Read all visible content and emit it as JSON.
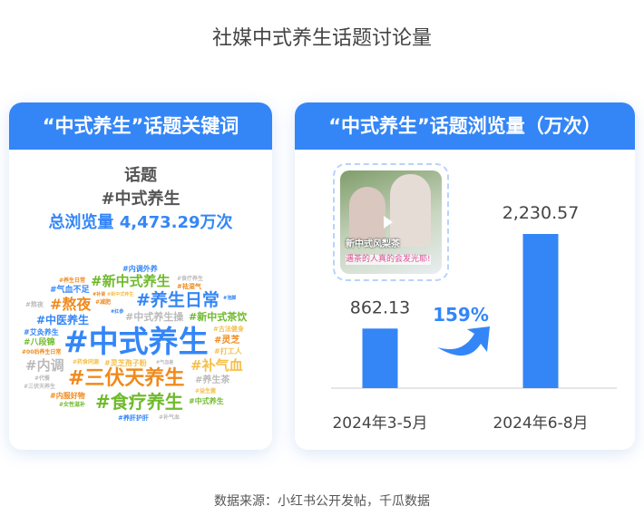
{
  "title": "社媒中式养生话题讨论量",
  "left_card": {
    "header": "“中式养生”话题关键词",
    "topic_label": "话题",
    "topic_name": "#中式养生",
    "total_label": "总浏览量",
    "total_value": "4,473.29万次",
    "word_cloud": [
      {
        "t": "#内调外养",
        "c": "#3486f7",
        "s": 8
      },
      {
        "t": "#新中式养生",
        "c": "#6fba2c",
        "s": 15
      },
      {
        "t": "#养生日常",
        "c": "#f08a1c",
        "s": 6
      },
      {
        "t": "#食疗养生",
        "c": "#bbbbbb",
        "s": 6
      },
      {
        "t": "#祛湿气",
        "c": "#f08a1c",
        "s": 7
      },
      {
        "t": "#气血不足",
        "c": "#3486f7",
        "s": 9
      },
      {
        "t": "#补肾",
        "c": "#f08a1c",
        "s": 5
      },
      {
        "t": "#新中式养生",
        "c": "#f5c04a",
        "s": 5
      },
      {
        "t": "#养生日常",
        "c": "#3486f7",
        "s": 19
      },
      {
        "t": "#熬夜",
        "c": "#f08a1c",
        "s": 16
      },
      {
        "t": "#减肥",
        "c": "#f08a1c",
        "s": 6
      },
      {
        "t": "#熬夜",
        "c": "#bbbbbb",
        "s": 7
      },
      {
        "t": "#泡脚",
        "c": "#3486f7",
        "s": 5
      },
      {
        "t": "#红参",
        "c": "#3486f7",
        "s": 5
      },
      {
        "t": "#中式养生操",
        "c": "#bbbbbb",
        "s": 11
      },
      {
        "t": "#新中式茶饮",
        "c": "#6fba2c",
        "s": 11
      },
      {
        "t": "#中医养生",
        "c": "#3486f7",
        "s": 12
      },
      {
        "t": "#中式养生",
        "c": "#3486f7",
        "s": 33
      },
      {
        "t": "#古法健身",
        "c": "#f5c04a",
        "s": 7
      },
      {
        "t": "#艾灸养生",
        "c": "#3486f7",
        "s": 8
      },
      {
        "t": "#灵芝",
        "c": "#f08a1c",
        "s": 10
      },
      {
        "t": "#八段锦",
        "c": "#6fba2c",
        "s": 9
      },
      {
        "t": "#打工人",
        "c": "#f5c04a",
        "s": 8
      },
      {
        "t": "#00后养生日常",
        "c": "#f08a1c",
        "s": 6
      },
      {
        "t": "#内调",
        "c": "#bbbbbb",
        "s": 15
      },
      {
        "t": "#药食同源",
        "c": "#f5c04a",
        "s": 6
      },
      {
        "t": "#灵芝孢子粉",
        "c": "#f5c04a",
        "s": 8
      },
      {
        "t": "#气血差",
        "c": "#bbbbbb",
        "s": 5
      },
      {
        "t": "#补气血",
        "c": "#f5c04a",
        "s": 15
      },
      {
        "t": "#代餐",
        "c": "#bbbbbb",
        "s": 6
      },
      {
        "t": "#三伏天养生",
        "c": "#f08a1c",
        "s": 22
      },
      {
        "t": "#养生茶",
        "c": "#bbbbbb",
        "s": 10
      },
      {
        "t": "#三伏天养生",
        "c": "#bbbbbb",
        "s": 6
      },
      {
        "t": "#内服好物",
        "c": "#f08a1c",
        "s": 8
      },
      {
        "t": "#益生菌",
        "c": "#f5c04a",
        "s": 6
      },
      {
        "t": "#食疗养生",
        "c": "#6fba2c",
        "s": 20
      },
      {
        "t": "#女性滋补",
        "c": "#6fba2c",
        "s": 6
      },
      {
        "t": "#中式养生",
        "c": "#6fba2c",
        "s": 8
      },
      {
        "t": "#养肝护肝",
        "c": "#3486f7",
        "s": 7
      },
      {
        "t": "#补气血",
        "c": "#bbbbbb",
        "s": 6
      }
    ]
  },
  "right_card": {
    "header": "“中式养生”话题浏览量（万次）",
    "thumb_caption_1": "新中式风梨茶",
    "thumb_caption_2": "遇茶的人真的会发光耶!"
  },
  "chart_data": {
    "type": "bar",
    "title": "“中式养生”话题浏览量（万次）",
    "categories": [
      "2024年3-5月",
      "2024年6-8月"
    ],
    "values": [
      862.13,
      2230.57
    ],
    "value_labels": [
      "862.13",
      "2,230.57"
    ],
    "growth_label": "159%",
    "ylim": [
      0,
      2230.57
    ],
    "bar_color": "#3486f7",
    "grid": false
  },
  "source": "数据来源：小红书公开发帖，千瓜数据"
}
